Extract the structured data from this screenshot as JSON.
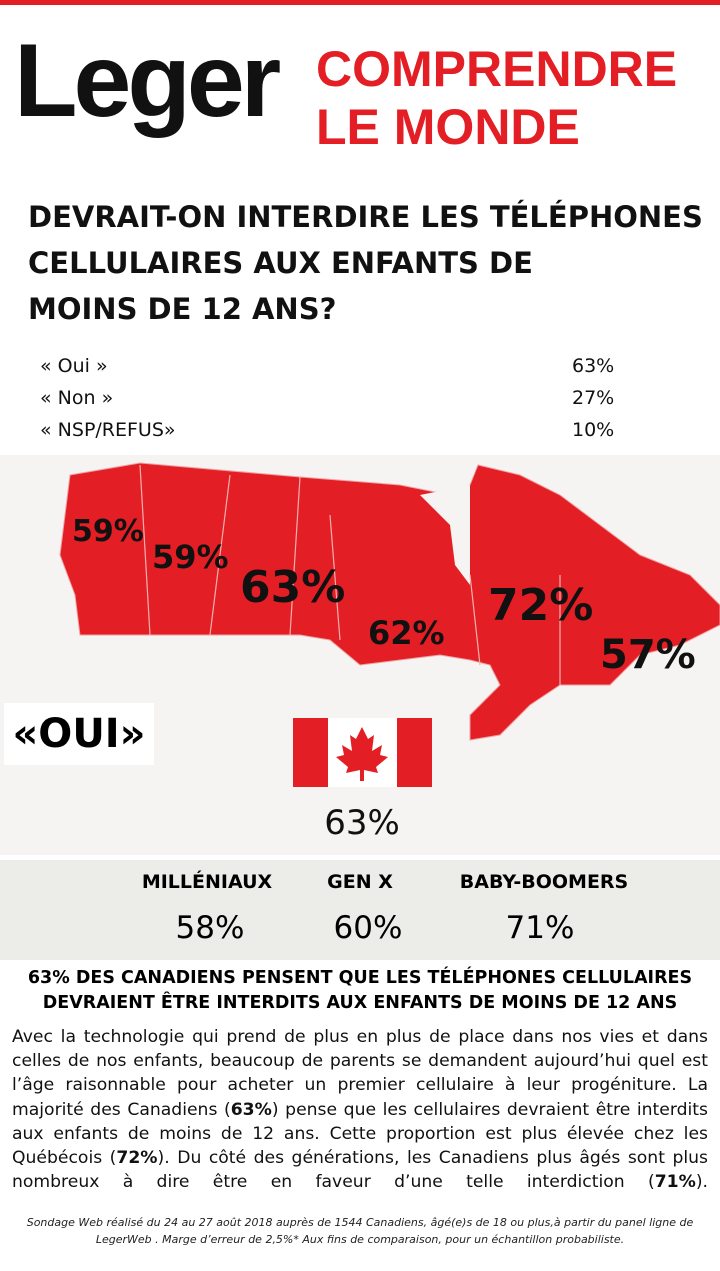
{
  "header": {
    "logo": "Leger",
    "tagline": [
      "COMPRENDRE",
      "LE MONDE"
    ]
  },
  "question": [
    "DEVRAIT-ON INTERDIRE LES TÉLÉPHONES",
    "CELLULAIRES AUX ENFANTS DE",
    "MOINS DE 12 ANS?"
  ],
  "results": [
    {
      "label": "« Oui »",
      "value": "63%"
    },
    {
      "label": "« Non »",
      "value": "27%"
    },
    {
      "label": "« NSP/REFUS»",
      "value": "10%"
    }
  ],
  "map": {
    "regions": [
      "59%",
      "59%",
      "63%",
      "62%",
      "72%",
      "57%"
    ],
    "answer": "«OUI»",
    "national": "63%"
  },
  "generations": [
    {
      "label": "MILLÉNIAUX",
      "value": "58%"
    },
    {
      "label": "GEN X",
      "value": "60%"
    },
    {
      "label": "BABY-BOOMERS",
      "value": "71%"
    }
  ],
  "headline": [
    "63% DES CANADIENS PENSENT QUE LES TÉLÉPHONES CELLULAIRES",
    "DEVRAIENT ÊTRE INTERDITS AUX ENFANTS DE MOINS DE 12 ANS"
  ],
  "body": [
    "Avec la technologie qui prend de plus en plus de place dans nos vies et dans celles de nos enfants, beaucoup de parents se demandent aujourd’hui quel est l’âge raisonnable pour acheter un premier cellulaire à leur progéniture. La majorité des Canadiens (",
    "63%",
    ") pense que les cellulaires devraient être interdits aux enfants de moins de 12 ans. Cette proportion est plus élevée chez les Québécois (",
    "72%",
    "). Du côté des générations, les Canadiens plus âgés sont plus nombreux à dire être en faveur d’une telle interdiction (",
    "71%",
    ")."
  ],
  "footnote": "Sondage Web réalisé du 24 au 27 août 2018 auprès de 1544 Canadiens, âgé(e)s de 18 ou plus,à partir du panel ligne de LegerWeb . Marge d’erreur de 2,5%* Aux fins de comparaison, pour un échantillon probabiliste."
}
